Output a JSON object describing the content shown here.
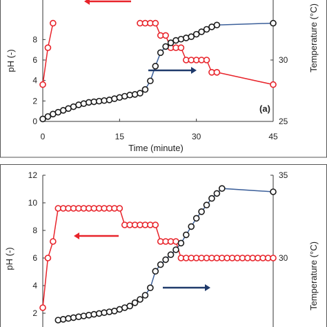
{
  "colors": {
    "ph": "#e8232a",
    "temp_line": "#3b5f9a",
    "temp_marker": "#1a1a1a",
    "arrow_temp": "#1f3a6b",
    "arrow_ph": "#e8232a"
  },
  "chart_data": [
    {
      "type": "line",
      "panel_label": "(a)",
      "xlabel": "Time (minute)",
      "ylabel": "pH (-)",
      "y2label": "Temperature (°C)",
      "xlim": [
        0,
        45
      ],
      "ylim": [
        0,
        12
      ],
      "y2lim": [
        25,
        35
      ],
      "x_ticks": [
        "0",
        "15",
        "30",
        "45"
      ],
      "y_ticks": [
        "0",
        "2",
        "4",
        "6",
        "8"
      ],
      "y2_ticks": [
        "25",
        "30"
      ],
      "series": [
        {
          "axis": "left",
          "marker": "open-circle",
          "x": [
            0,
            1,
            2
          ],
          "y": [
            3.6,
            7.2,
            9.6
          ]
        },
        {
          "axis": "left",
          "marker": "open-circle",
          "x": [
            19,
            20,
            21,
            22,
            23,
            24,
            25,
            26,
            27,
            28,
            29,
            30,
            31,
            32,
            33,
            34,
            45
          ],
          "y": [
            9.6,
            9.6,
            9.6,
            9.6,
            8.4,
            8.4,
            7.2,
            7.2,
            7.2,
            6.0,
            6.0,
            6.0,
            6.0,
            6.0,
            4.8,
            4.8,
            3.6
          ]
        },
        {
          "axis": "right",
          "marker": "open-circle",
          "x": [
            0,
            1,
            2,
            3,
            4,
            5,
            6,
            7,
            8,
            9,
            10,
            11,
            12,
            13,
            14,
            15,
            16,
            17,
            18,
            19,
            20,
            21,
            22,
            23,
            24,
            25,
            26,
            27,
            28,
            29,
            30,
            31,
            32,
            33,
            34,
            45
          ],
          "y": [
            25.2,
            25.4,
            25.6,
            25.75,
            25.9,
            26.05,
            26.2,
            26.35,
            26.45,
            26.55,
            26.6,
            26.65,
            26.7,
            26.75,
            26.85,
            26.95,
            27.05,
            27.15,
            27.2,
            27.3,
            27.6,
            28.3,
            29.5,
            30.6,
            31.1,
            31.4,
            31.6,
            31.7,
            31.8,
            31.9,
            32.1,
            32.3,
            32.5,
            32.7,
            32.85,
            33.0
          ]
        }
      ]
    },
    {
      "type": "line",
      "panel_label": "",
      "xlabel": "",
      "ylabel": "pH (-)",
      "y2label": "Temperature (°C)",
      "xlim": [
        0,
        45
      ],
      "ylim": [
        0,
        12
      ],
      "y2lim": [
        25,
        35
      ],
      "y_ticks": [
        "2",
        "4",
        "6",
        "8",
        "10",
        "12"
      ],
      "y2_ticks": [
        "30",
        "35"
      ],
      "series": [
        {
          "axis": "left",
          "marker": "open-circle",
          "x": [
            0,
            1,
            2,
            3,
            4,
            5,
            6,
            7,
            8,
            9,
            10,
            11,
            12,
            13,
            14,
            15,
            16,
            17,
            18,
            19,
            20,
            21,
            22,
            23,
            24,
            25,
            26,
            27,
            28,
            29,
            30,
            31,
            32,
            33,
            34,
            35,
            36,
            37,
            38,
            39,
            40,
            41,
            42,
            43,
            44,
            45
          ],
          "y": [
            2.4,
            6.0,
            7.2,
            9.6,
            9.6,
            9.6,
            9.6,
            9.6,
            9.6,
            9.6,
            9.6,
            9.6,
            9.6,
            9.6,
            9.6,
            9.6,
            8.4,
            8.4,
            8.4,
            8.4,
            8.4,
            8.4,
            8.4,
            7.2,
            7.2,
            7.2,
            7.2,
            6.0,
            6.0,
            6.0,
            6.0,
            6.0,
            6.0,
            6.0,
            6.0,
            6.0,
            6.0,
            6.0,
            6.0,
            6.0,
            6.0,
            6.0,
            6.0,
            6.0,
            6.0,
            6.0
          ]
        },
        {
          "axis": "right",
          "marker": "open-circle",
          "x": [
            3,
            4,
            5,
            6,
            7,
            8,
            9,
            10,
            11,
            12,
            13,
            14,
            15,
            16,
            17,
            18,
            19,
            20,
            21,
            22,
            23,
            24,
            25,
            26,
            27,
            28,
            29,
            30,
            31,
            32,
            33,
            34,
            35,
            45
          ],
          "y": [
            26.25,
            26.3,
            26.35,
            26.4,
            26.45,
            26.5,
            26.55,
            26.6,
            26.65,
            26.7,
            26.75,
            26.8,
            26.9,
            27.0,
            27.1,
            27.3,
            27.5,
            27.75,
            28.2,
            29.2,
            29.6,
            29.9,
            30.2,
            30.5,
            30.9,
            31.4,
            31.9,
            32.4,
            32.8,
            33.2,
            33.6,
            33.9,
            34.2,
            34.0
          ]
        }
      ]
    }
  ]
}
